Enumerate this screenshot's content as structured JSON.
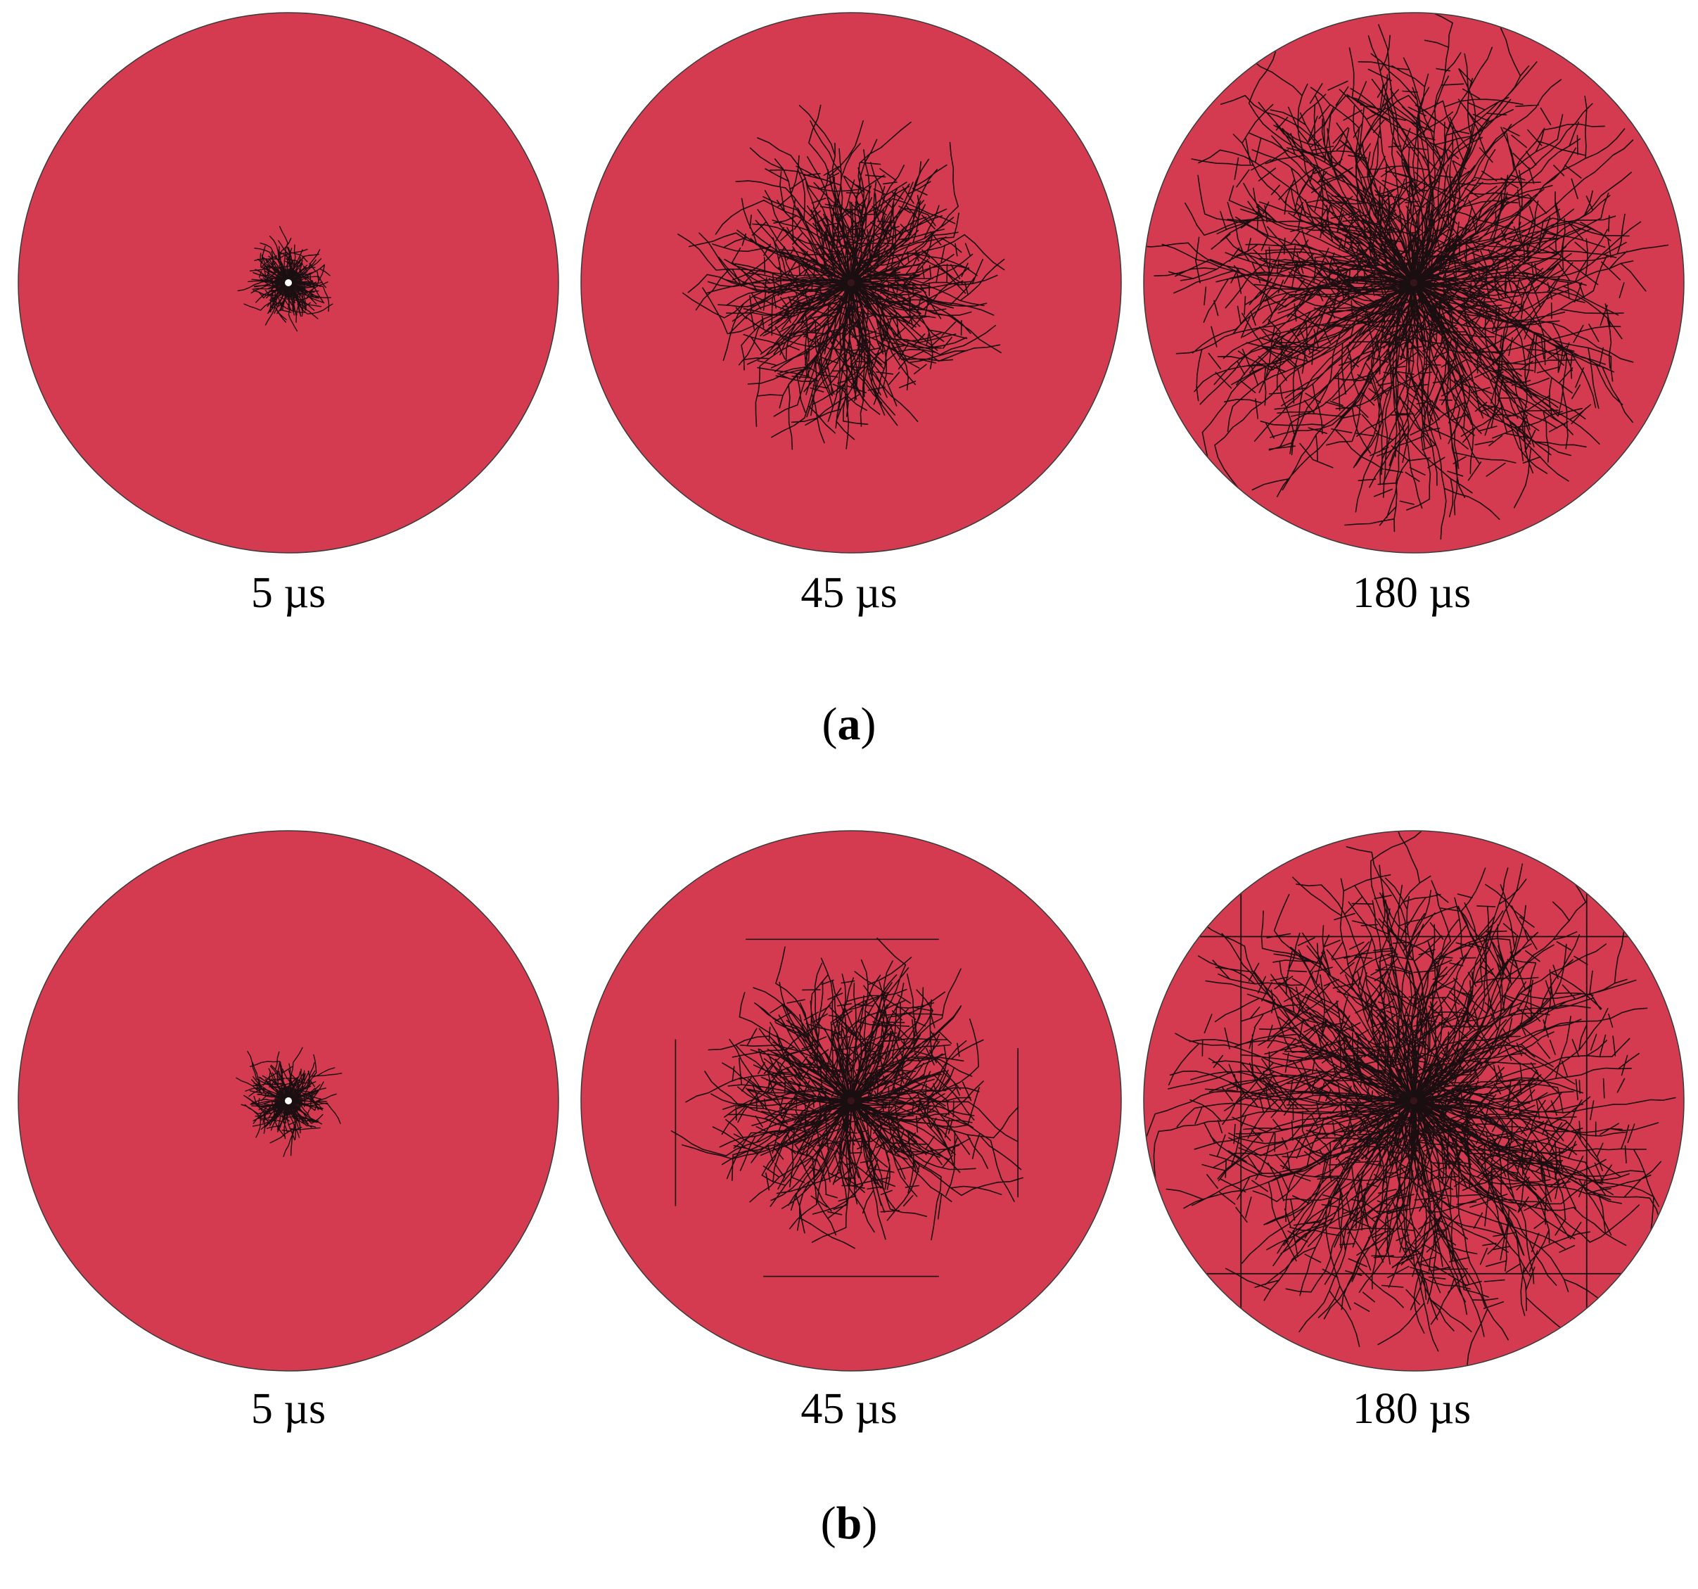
{
  "figure": {
    "disk_color": "#d43a50",
    "crack_color": "#1a0e10",
    "rows": [
      {
        "id": "a",
        "panel_label": "a",
        "frames": [
          {
            "time_label": "5 µs",
            "crack_extent": 0.14,
            "crack_density": "low"
          },
          {
            "time_label": "45 µs",
            "crack_extent": 0.55,
            "crack_density": "medium"
          },
          {
            "time_label": "180 µs",
            "crack_extent": 1.0,
            "crack_density": "high"
          }
        ]
      },
      {
        "id": "b",
        "panel_label": "b",
        "frames": [
          {
            "time_label": "5 µs",
            "crack_extent": 0.14,
            "crack_density": "low"
          },
          {
            "time_label": "45 µs",
            "crack_extent": 0.55,
            "crack_density": "medium",
            "boundary_cracks": "partial-square"
          },
          {
            "time_label": "180 µs",
            "crack_extent": 1.0,
            "crack_density": "high",
            "boundary_cracks": "grid"
          }
        ]
      }
    ]
  }
}
